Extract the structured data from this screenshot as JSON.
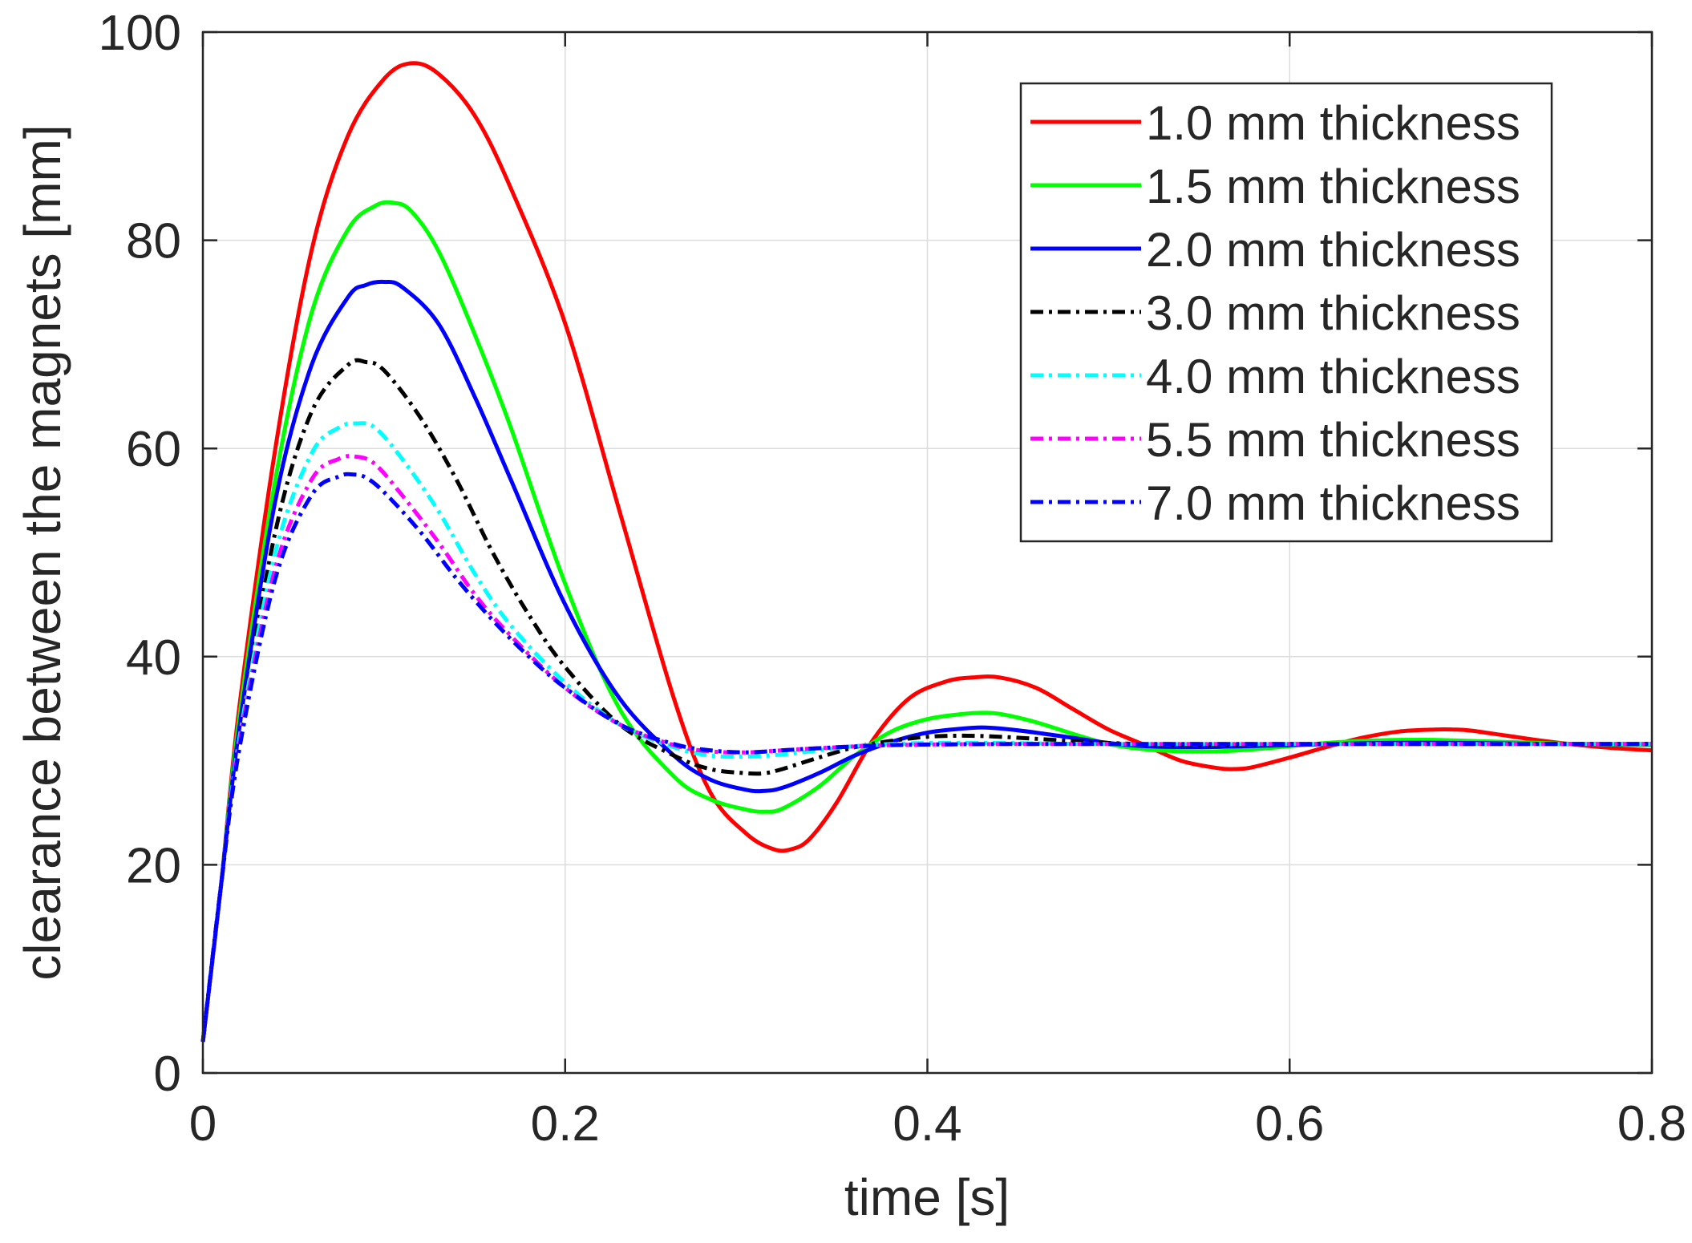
{
  "chart_data": {
    "type": "line",
    "title": "",
    "xlabel": "time [s]",
    "ylabel": "clearance between the magnets [mm]",
    "xlim": [
      0,
      0.8
    ],
    "ylim": [
      0,
      100
    ],
    "xticks": [
      0,
      0.2,
      0.4,
      0.6,
      0.8
    ],
    "xtick_labels": [
      "0",
      "0.2",
      "0.4",
      "0.6",
      "0.8"
    ],
    "yticks": [
      0,
      20,
      40,
      60,
      80,
      100
    ],
    "ytick_labels": [
      "0",
      "20",
      "40",
      "60",
      "80",
      "100"
    ],
    "grid": true,
    "legend_position": "top-right",
    "series": [
      {
        "name": "1.0 mm thickness",
        "color": "#ff0000",
        "style": "solid",
        "x": [
          0,
          0.01,
          0.02,
          0.04,
          0.06,
          0.08,
          0.1,
          0.115,
          0.13,
          0.15,
          0.17,
          0.2,
          0.23,
          0.26,
          0.28,
          0.3,
          0.315,
          0.325,
          0.335,
          0.35,
          0.37,
          0.39,
          0.41,
          0.425,
          0.44,
          0.46,
          0.48,
          0.5,
          0.52,
          0.54,
          0.56,
          0.57,
          0.58,
          0.6,
          0.62,
          0.64,
          0.66,
          0.68,
          0.69,
          0.7,
          0.72,
          0.74,
          0.76,
          0.78,
          0.8
        ],
        "y": [
          3,
          18,
          35,
          60,
          79,
          90,
          95.5,
          97,
          96,
          92,
          85,
          72,
          54,
          36,
          27,
          23,
          21.5,
          21.5,
          22.5,
          26,
          32,
          36,
          37.6,
          38,
          38,
          37,
          35,
          33,
          31.5,
          30,
          29.3,
          29.2,
          29.4,
          30.3,
          31.3,
          32.2,
          32.8,
          33,
          33,
          32.9,
          32.4,
          31.9,
          31.5,
          31.2,
          31
        ]
      },
      {
        "name": "1.5 mm thickness",
        "color": "#00ff00",
        "style": "solid",
        "x": [
          0,
          0.01,
          0.02,
          0.04,
          0.06,
          0.08,
          0.095,
          0.105,
          0.115,
          0.13,
          0.15,
          0.17,
          0.2,
          0.23,
          0.26,
          0.28,
          0.3,
          0.31,
          0.32,
          0.34,
          0.36,
          0.38,
          0.4,
          0.42,
          0.43,
          0.44,
          0.46,
          0.48,
          0.5,
          0.52,
          0.54,
          0.56,
          0.58,
          0.6,
          0.62,
          0.64,
          0.66,
          0.68,
          0.7,
          0.72,
          0.76,
          0.8
        ],
        "y": [
          3,
          18,
          34,
          57,
          73,
          81,
          83.3,
          83.6,
          82.8,
          79,
          71,
          62,
          47,
          35,
          28.5,
          26.3,
          25.3,
          25.1,
          25.4,
          27.5,
          30.5,
          32.8,
          34,
          34.5,
          34.6,
          34.5,
          33.7,
          32.6,
          31.6,
          31.1,
          30.9,
          30.9,
          31.1,
          31.4,
          31.7,
          31.9,
          32,
          32,
          31.9,
          31.8,
          31.6,
          31.5
        ]
      },
      {
        "name": "2.0 mm thickness",
        "color": "#0000ff",
        "style": "solid",
        "x": [
          0,
          0.01,
          0.02,
          0.04,
          0.06,
          0.08,
          0.09,
          0.1,
          0.11,
          0.13,
          0.15,
          0.17,
          0.2,
          0.23,
          0.26,
          0.28,
          0.3,
          0.31,
          0.32,
          0.34,
          0.36,
          0.38,
          0.4,
          0.42,
          0.43,
          0.44,
          0.46,
          0.48,
          0.5,
          0.52,
          0.55,
          0.6,
          0.65,
          0.7,
          0.75,
          0.8
        ],
        "y": [
          3,
          18,
          33,
          55,
          68,
          74.5,
          75.7,
          76,
          75.5,
          72,
          65,
          57,
          45,
          36,
          30.5,
          28.2,
          27.2,
          27.1,
          27.4,
          28.8,
          30.5,
          31.8,
          32.7,
          33.1,
          33.2,
          33.1,
          32.7,
          32.2,
          31.7,
          31.4,
          31.3,
          31.5,
          31.7,
          31.7,
          31.6,
          31.6
        ]
      },
      {
        "name": "3.0 mm thickness",
        "color": "#000000",
        "style": "dashdot",
        "x": [
          0,
          0.01,
          0.02,
          0.04,
          0.06,
          0.08,
          0.09,
          0.1,
          0.12,
          0.14,
          0.16,
          0.18,
          0.2,
          0.23,
          0.26,
          0.28,
          0.3,
          0.31,
          0.32,
          0.34,
          0.36,
          0.38,
          0.4,
          0.42,
          0.44,
          0.46,
          0.5,
          0.55,
          0.6,
          0.7,
          0.8
        ],
        "y": [
          3,
          18,
          32,
          52,
          63.5,
          68,
          68.3,
          67.5,
          63,
          57,
          50,
          44,
          39,
          33.5,
          30.5,
          29.2,
          28.8,
          28.8,
          29.2,
          30.3,
          31.3,
          31.9,
          32.3,
          32.4,
          32.3,
          32.1,
          31.7,
          31.5,
          31.6,
          31.6,
          31.6
        ]
      },
      {
        "name": "4.0 mm thickness",
        "color": "#00ffff",
        "style": "dashdot",
        "x": [
          0,
          0.01,
          0.02,
          0.04,
          0.06,
          0.075,
          0.085,
          0.095,
          0.11,
          0.13,
          0.15,
          0.17,
          0.2,
          0.23,
          0.26,
          0.28,
          0.3,
          0.32,
          0.34,
          0.36,
          0.38,
          0.4,
          0.44,
          0.5,
          0.6,
          0.7,
          0.8
        ],
        "y": [
          3,
          18,
          32,
          50,
          59.5,
          62,
          62.4,
          62,
          59,
          54,
          48,
          43,
          37.5,
          33.5,
          31.3,
          30.5,
          30.4,
          30.6,
          31,
          31.4,
          31.6,
          31.7,
          31.7,
          31.6,
          31.6,
          31.6,
          31.6
        ]
      },
      {
        "name": "5.5 mm thickness",
        "color": "#ff00ff",
        "style": "dashdot",
        "x": [
          0,
          0.01,
          0.02,
          0.04,
          0.06,
          0.075,
          0.085,
          0.095,
          0.11,
          0.13,
          0.15,
          0.17,
          0.2,
          0.23,
          0.26,
          0.28,
          0.3,
          0.32,
          0.34,
          0.38,
          0.44,
          0.5,
          0.6,
          0.7,
          0.8
        ],
        "y": [
          3,
          18,
          31.5,
          48.5,
          57,
          59,
          59.2,
          58.5,
          55.5,
          51,
          46,
          42,
          37,
          33.5,
          31.5,
          30.9,
          30.8,
          31,
          31.2,
          31.5,
          31.6,
          31.6,
          31.6,
          31.6,
          31.6
        ]
      },
      {
        "name": "7.0 mm thickness",
        "color": "#0000ff",
        "style": "dashdot",
        "x": [
          0,
          0.01,
          0.02,
          0.04,
          0.06,
          0.075,
          0.083,
          0.09,
          0.1,
          0.12,
          0.14,
          0.16,
          0.18,
          0.2,
          0.23,
          0.26,
          0.28,
          0.3,
          0.32,
          0.34,
          0.38,
          0.44,
          0.5,
          0.6,
          0.7,
          0.8
        ],
        "y": [
          3,
          18,
          31,
          47.5,
          55.5,
          57.3,
          57.5,
          57.2,
          55.8,
          52,
          47.5,
          43.5,
          40,
          37,
          33.5,
          31.6,
          31,
          30.8,
          31,
          31.2,
          31.5,
          31.6,
          31.6,
          31.6,
          31.6,
          31.6
        ]
      }
    ]
  }
}
